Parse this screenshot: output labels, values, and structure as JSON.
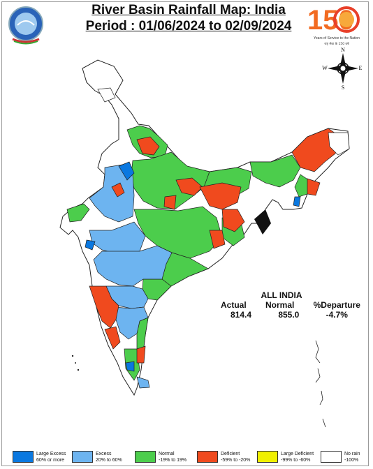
{
  "title": {
    "line1": "River Basin Rainfall Map: India",
    "line2": "Period : 01/06/2024 to 02/09/2024"
  },
  "logo_right": {
    "number": "150",
    "caption": "Years of Service to the Nation",
    "caption_hindi": "राष्ट्र सेवा के 150 वर्ष"
  },
  "compass": {
    "n": "N",
    "s": "S",
    "e": "E",
    "w": "W"
  },
  "all_india": {
    "heading": "ALL INDIA",
    "labels": [
      "Actual",
      "Normal",
      "%Departure"
    ],
    "values": [
      "814.4",
      "855.0",
      "-4.7%"
    ]
  },
  "legend": [
    {
      "label": "Large Excess",
      "range": "60% or more",
      "color": "#0a78e0"
    },
    {
      "label": "Excess",
      "range": "20% to 60%",
      "color": "#6db4f0"
    },
    {
      "label": "Normal",
      "range": "-19% to 19%",
      "color": "#4ccd4c"
    },
    {
      "label": "Deficient",
      "range": "-59% to -20%",
      "color": "#f04a1e"
    },
    {
      "label": "Large Deficient",
      "range": "-99% to -60%",
      "color": "#f0f000"
    },
    {
      "label": "No rain",
      "range": "-100%",
      "color": "#ffffff"
    }
  ]
}
